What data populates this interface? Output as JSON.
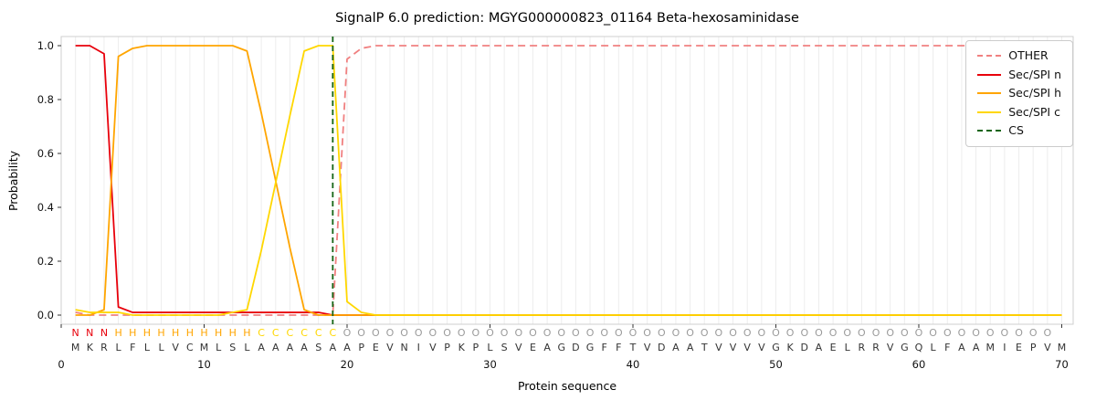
{
  "chart_data": {
    "type": "line",
    "title": "SignalP 6.0 prediction: MGYG000000823_01164 Beta-hexosaminidase",
    "xlabel": "Protein sequence",
    "ylabel": "Probability",
    "xlim": [
      0,
      70.8
    ],
    "ylim": [
      0.0,
      1.0
    ],
    "x_ticks": [
      0,
      10,
      20,
      30,
      40,
      50,
      60,
      70
    ],
    "y_ticks": [
      0.0,
      0.2,
      0.4,
      0.6,
      0.8,
      1.0
    ],
    "grid": "vertical light-gray line at every residue position",
    "legend_position": "upper right",
    "x_start": 1,
    "series": [
      {
        "name": "OTHER",
        "color": "#f08080",
        "dash": "dashed",
        "values": [
          0.01,
          0,
          0,
          0,
          0,
          0,
          0,
          0,
          0,
          0,
          0,
          0,
          0,
          0,
          0,
          0,
          0,
          0,
          0,
          0.95,
          0.99,
          1,
          1,
          1,
          1,
          1,
          1,
          1,
          1,
          1,
          1,
          1,
          1,
          1,
          1,
          1,
          1,
          1,
          1,
          1,
          1,
          1,
          1,
          1,
          1,
          1,
          1,
          1,
          1,
          1,
          1,
          1,
          1,
          1,
          1,
          1,
          1,
          1,
          1,
          1,
          1,
          1,
          1,
          1,
          1,
          1,
          1,
          1,
          1,
          1
        ]
      },
      {
        "name": "Sec/SPI n",
        "color": "#e8000b",
        "dash": "solid",
        "values": [
          1,
          1,
          0.97,
          0.03,
          0.01,
          0.01,
          0.01,
          0.01,
          0.01,
          0.01,
          0.01,
          0.01,
          0.01,
          0.01,
          0.01,
          0.01,
          0.01,
          0.01,
          0,
          0,
          0,
          0,
          0,
          0,
          0,
          0,
          0,
          0,
          0,
          0,
          0,
          0,
          0,
          0,
          0,
          0,
          0,
          0,
          0,
          0,
          0,
          0,
          0,
          0,
          0,
          0,
          0,
          0,
          0,
          0,
          0,
          0,
          0,
          0,
          0,
          0,
          0,
          0,
          0,
          0,
          0,
          0,
          0,
          0,
          0,
          0,
          0,
          0,
          0,
          0
        ]
      },
      {
        "name": "Sec/SPI h",
        "color": "#ffa500",
        "dash": "solid",
        "values": [
          0,
          0,
          0.02,
          0.96,
          0.99,
          1,
          1,
          1,
          1,
          1,
          1,
          1,
          0.98,
          0.75,
          0.5,
          0.25,
          0.02,
          0,
          0,
          0,
          0,
          0,
          0,
          0,
          0,
          0,
          0,
          0,
          0,
          0,
          0,
          0,
          0,
          0,
          0,
          0,
          0,
          0,
          0,
          0,
          0,
          0,
          0,
          0,
          0,
          0,
          0,
          0,
          0,
          0,
          0,
          0,
          0,
          0,
          0,
          0,
          0,
          0,
          0,
          0,
          0,
          0,
          0,
          0,
          0,
          0,
          0,
          0,
          0,
          0
        ]
      },
      {
        "name": "Sec/SPI c",
        "color": "#ffd700",
        "dash": "solid",
        "values": [
          0.02,
          0.01,
          0.01,
          0.01,
          0,
          0,
          0,
          0,
          0,
          0,
          0,
          0.01,
          0.02,
          0.24,
          0.49,
          0.74,
          0.98,
          1,
          1,
          0.05,
          0.01,
          0,
          0,
          0,
          0,
          0,
          0,
          0,
          0,
          0,
          0,
          0,
          0,
          0,
          0,
          0,
          0,
          0,
          0,
          0,
          0,
          0,
          0,
          0,
          0,
          0,
          0,
          0,
          0,
          0,
          0,
          0,
          0,
          0,
          0,
          0,
          0,
          0,
          0,
          0,
          0,
          0,
          0,
          0,
          0,
          0,
          0,
          0,
          0,
          0
        ]
      }
    ],
    "cs": {
      "label": "CS",
      "x": 19,
      "color": "#146414",
      "dash": "dashed"
    },
    "legend": [
      {
        "label": "OTHER",
        "color": "#f08080",
        "dash": "dashed"
      },
      {
        "label": "Sec/SPI n",
        "color": "#e8000b",
        "dash": "solid"
      },
      {
        "label": "Sec/SPI h",
        "color": "#ffa500",
        "dash": "solid"
      },
      {
        "label": "Sec/SPI c",
        "color": "#ffd700",
        "dash": "solid"
      },
      {
        "label": "CS",
        "color": "#146414",
        "dash": "dashed"
      }
    ],
    "sequence": "MKRLFLLVCMLSLAAAASAAPEVNIVPKPLSVEAGDGFFTVDAATVVVVGKDAELRRVGQLFAAMIEPVM",
    "region_labels": "NNNHHHHHHHHHHCCCCCCOOOOOOOOOOOOOOOOOOOOOOOOOOOOOOOOOOOOOOOOOOOOOOOOOO",
    "region_colors": {
      "N": "#e8000b",
      "H": "#ffa500",
      "C": "#ffd700",
      "O": "#9b9b9b"
    },
    "sequence_color": "#333333"
  }
}
